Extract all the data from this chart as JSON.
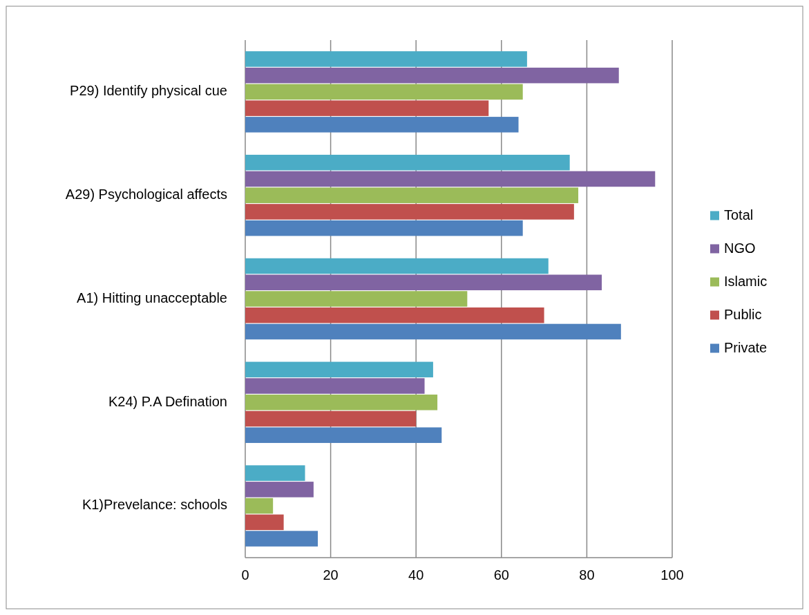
{
  "chart_data": {
    "type": "bar",
    "orientation": "horizontal",
    "categories": [
      "P29) Identify physical cue",
      "A29) Psychological affects",
      "A1) Hitting unacceptable",
      "K24) P.A Defination",
      "K1)Prevelance: schools"
    ],
    "series": [
      {
        "name": "Total",
        "color": "#4bacc6",
        "values": [
          66,
          76,
          71,
          44,
          14
        ]
      },
      {
        "name": "NGO",
        "color": "#8064a2",
        "values": [
          87.5,
          96,
          83.5,
          42,
          16
        ]
      },
      {
        "name": "Islamic",
        "color": "#9bbb59",
        "values": [
          65,
          78,
          52,
          45,
          6.5
        ]
      },
      {
        "name": "Public",
        "color": "#c0504d",
        "values": [
          57,
          77,
          70,
          40,
          9
        ]
      },
      {
        "name": "Private",
        "color": "#4f81bd",
        "values": [
          64,
          65,
          88,
          46,
          17
        ]
      }
    ],
    "xlim": [
      0,
      100
    ],
    "xticks": [
      0,
      20,
      40,
      60,
      80,
      100
    ],
    "grid": "x",
    "legend": "right"
  }
}
